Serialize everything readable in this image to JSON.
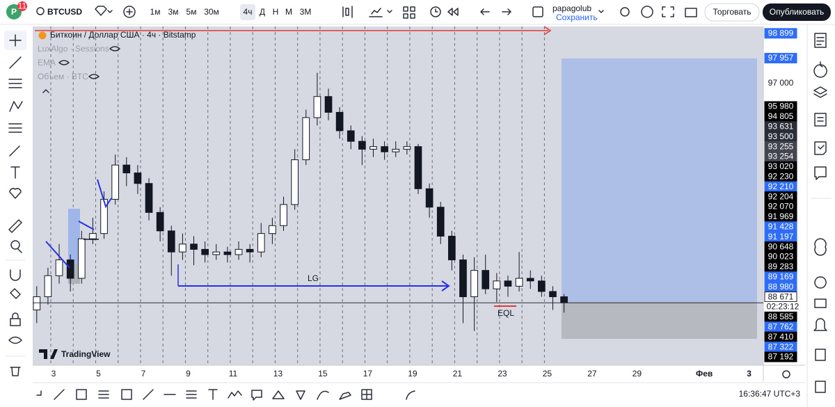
{
  "header": {
    "avatar": "P",
    "badge": "11",
    "symbol": "BTCUSD",
    "intervals": [
      "1м",
      "3м",
      "5м",
      "30м",
      "4ч",
      "Д",
      "Н",
      "М",
      "3М"
    ],
    "active_interval": "4ч",
    "user": "papagolub",
    "save": "Сохранить",
    "trade": "Торговать",
    "publish": "Опубликовать"
  },
  "legend": {
    "title": "Биткоин / Доллар США · 4ч · Bitstamp",
    "indicators": [
      "LuxAlgo · Sessions",
      "EMA",
      "Объем · BTC"
    ]
  },
  "chart_data": {
    "type": "candlestick",
    "x": [
      2.25,
      2.75,
      3.25,
      3.75,
      4.25,
      4.75,
      5.25,
      5.75,
      6.25,
      6.75,
      7.25,
      7.75,
      8.25,
      8.75,
      9.25,
      9.75,
      10.25,
      10.75,
      11.25,
      11.75,
      12.25,
      12.75,
      13.25,
      13.75,
      14.25,
      14.75,
      15.25,
      15.75,
      16.25,
      16.75,
      17.25,
      17.75,
      18.25,
      18.75,
      19.25,
      19.75,
      20.25,
      20.75,
      21.25,
      21.75,
      22.25,
      22.75,
      23.25,
      23.75,
      24.25,
      24.75,
      25.25,
      25.75
    ],
    "open": [
      88400,
      88900,
      89700,
      90300,
      89600,
      91100,
      91300,
      92600,
      93900,
      93600,
      93200,
      92100,
      91400,
      90600,
      90900,
      90700,
      90500,
      90600,
      90500,
      90700,
      90600,
      91300,
      91600,
      92400,
      94100,
      95700,
      96500,
      95900,
      95200,
      94800,
      94500,
      94600,
      94400,
      94500,
      94600,
      93000,
      92300,
      91200,
      90300,
      88900,
      89900,
      89200,
      89500,
      89300,
      89600,
      89500,
      89100,
      88900
    ],
    "high": [
      89300,
      90000,
      90900,
      90500,
      91400,
      91900,
      92900,
      94300,
      94200,
      93900,
      93400,
      92300,
      91600,
      91300,
      91200,
      91000,
      90900,
      90800,
      91000,
      90900,
      91700,
      91900,
      92700,
      94500,
      96000,
      97400,
      96800,
      96100,
      95400,
      95000,
      94900,
      94800,
      94800,
      94800,
      94700,
      93200,
      92500,
      91400,
      90500,
      90400,
      90500,
      89800,
      89700,
      90600,
      89900,
      89700,
      89300,
      89000
    ],
    "low": [
      87900,
      88600,
      89400,
      89100,
      89400,
      90900,
      91100,
      92400,
      93100,
      92800,
      91800,
      91000,
      89700,
      90300,
      90100,
      90200,
      90300,
      90200,
      90300,
      90200,
      90400,
      90900,
      91400,
      92200,
      93900,
      95400,
      95600,
      94900,
      94500,
      93900,
      94200,
      94100,
      94200,
      94300,
      92800,
      91900,
      90900,
      89900,
      87900,
      87600,
      89000,
      88700,
      88900,
      89100,
      89200,
      88900,
      88400,
      88300
    ],
    "close": [
      88900,
      89700,
      90300,
      89600,
      91100,
      91300,
      92600,
      93900,
      93600,
      93200,
      92100,
      91400,
      90600,
      90900,
      90700,
      90500,
      90600,
      90500,
      90700,
      90600,
      91300,
      91600,
      92400,
      94100,
      95700,
      96500,
      95900,
      95200,
      94800,
      94500,
      94600,
      94400,
      94500,
      94600,
      93000,
      92300,
      91200,
      90300,
      88900,
      89900,
      89200,
      89500,
      89300,
      89600,
      89500,
      89100,
      88900,
      88671
    ],
    "up_color": "#ffffff",
    "down_color": "#131722",
    "xlim": [
      2.07,
      34.57
    ],
    "xticks": [
      3,
      5,
      7,
      9,
      11,
      13,
      15,
      17,
      19,
      21,
      23,
      25,
      27,
      29,
      {
        "value": 32,
        "label": "Фев"
      },
      {
        "value": 34,
        "label": "3"
      }
    ],
    "ylim": [
      86300,
      99160
    ],
    "yticks": [
      {
        "value": 97000,
        "label": "97 000"
      }
    ],
    "price_labels": [
      {
        "value": 98899,
        "label": "98 899",
        "color": "#2f6df6"
      },
      {
        "value": 97957,
        "label": "97 957",
        "color": "#2f6df6"
      },
      {
        "value": 95980,
        "label": "95 980",
        "color": "#000000"
      },
      {
        "value": 94805,
        "label": "94 805",
        "color": "#000000"
      },
      {
        "value": 93631,
        "label": "93 631",
        "color": "#2a2e39"
      },
      {
        "value": 93500,
        "label": "93 500",
        "color": "#2a2e39"
      },
      {
        "value": 93255,
        "label": "93 255",
        "color": "#434651"
      },
      {
        "value": 93254,
        "label": "93 254",
        "color": "#434651"
      },
      {
        "value": 93020,
        "label": "93 020",
        "color": "#000000"
      },
      {
        "value": 92230,
        "label": "92 230",
        "color": "#000000"
      },
      {
        "value": 92210,
        "label": "92 210",
        "color": "#2f6df6"
      },
      {
        "value": 92204,
        "label": "92 204",
        "color": "#000000"
      },
      {
        "value": 92070,
        "label": "92 070",
        "color": "#000000"
      },
      {
        "value": 91969,
        "label": "91 969",
        "color": "#000000"
      },
      {
        "value": 91428,
        "label": "91 428",
        "color": "#2f6df6"
      },
      {
        "value": 91197,
        "label": "91 197",
        "color": "#2f6df6"
      },
      {
        "value": 90648,
        "label": "90 648",
        "color": "#000000"
      },
      {
        "value": 90023,
        "label": "90 023",
        "color": "#000000"
      },
      {
        "value": 89283,
        "label": "89 283",
        "color": "#000000"
      },
      {
        "value": 89169,
        "label": "89 169",
        "color": "#2f6df6"
      },
      {
        "value": 88980,
        "label": "88 980",
        "color": "#2f6df6"
      },
      {
        "value": 88585,
        "label": "88 585",
        "color": "#000000"
      },
      {
        "value": 87762,
        "label": "87 762",
        "color": "#2f6df6"
      },
      {
        "value": 87410,
        "label": "87 410",
        "color": "#000000"
      },
      {
        "value": 87322,
        "label": "87 322",
        "color": "#2f6df6"
      },
      {
        "value": 87192,
        "label": "87 192",
        "color": "#000000"
      }
    ],
    "current_price": {
      "value": 88671,
      "label": "88 671"
    },
    "countdown": "02:23:12",
    "annotations": [
      "LG",
      "EQL"
    ]
  },
  "watermark": "TradingView",
  "footer": {
    "time": "16:36:47 UTC+3"
  }
}
